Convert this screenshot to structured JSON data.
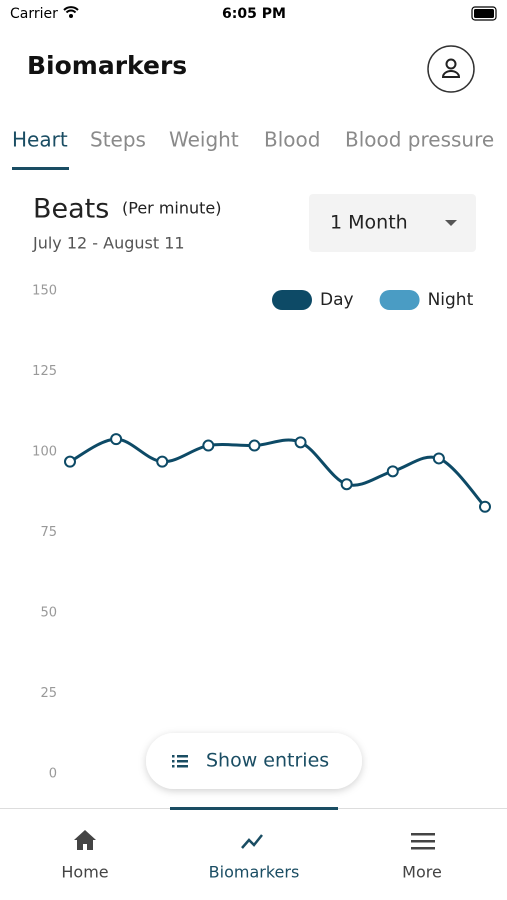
{
  "status_bar": {
    "carrier": "Carrier",
    "time": "6:05 PM"
  },
  "header": {
    "title": "Biomarkers"
  },
  "tabs": [
    "Heart",
    "Steps",
    "Weight",
    "Blood",
    "Blood pressure"
  ],
  "period": "1 Month",
  "chart_data": {
    "type": "line",
    "title": "Beats",
    "subtitle": "(Per minute)",
    "date_range": "July 12 - August 11",
    "series": [
      {
        "name": "Day",
        "color": "#0d4a66",
        "values": [
          97,
          104,
          97,
          102,
          102,
          103,
          90,
          94,
          98,
          83
        ]
      },
      {
        "name": "Night",
        "color": "#4a9cc4"
      }
    ],
    "ylim": [
      0,
      150
    ],
    "yticks": [
      0,
      25,
      50,
      75,
      100,
      125,
      150
    ],
    "grid": false,
    "legend": "top-right"
  },
  "show_entries": "Show entries",
  "nav": [
    "Home",
    "Biomarkers",
    "More"
  ]
}
